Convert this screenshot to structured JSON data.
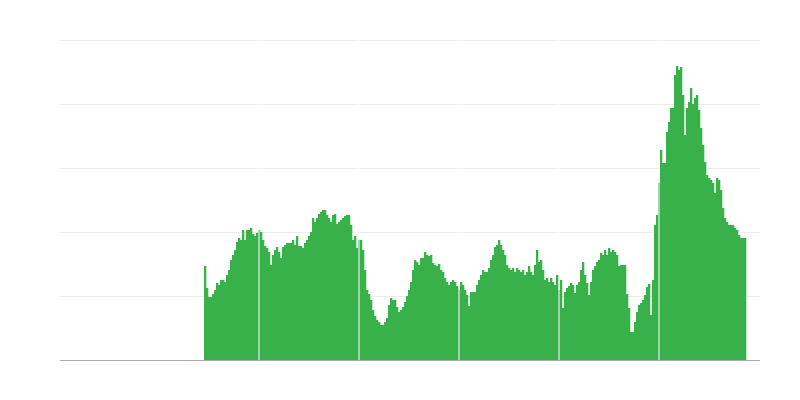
{
  "chart_data": {
    "type": "bar",
    "title": "",
    "xlabel": "",
    "ylabel": "",
    "ylim": [
      0,
      320
    ],
    "yticks": [
      0,
      64,
      128,
      192,
      256,
      320
    ],
    "grid": true,
    "legend": "none",
    "bar_color": "#38b14b",
    "grid_color": "#ebebeb",
    "axis_color": "#aaaaaa",
    "separator_color": "#ffffff",
    "x_start": 72,
    "x_end": 342,
    "x_range": [
      0,
      350
    ],
    "separators_at": [
      99.5,
      149.5,
      199.5,
      249.5,
      299.5
    ],
    "values": [
      94,
      72,
      63,
      63,
      66,
      70,
      77,
      75,
      80,
      80,
      78,
      85,
      90,
      100,
      105,
      110,
      118,
      122,
      120,
      130,
      120,
      130,
      130,
      132,
      126,
      124,
      127,
      130,
      128,
      120,
      114,
      112,
      108,
      95,
      105,
      110,
      113,
      108,
      102,
      113,
      115,
      117,
      117,
      117,
      120,
      115,
      124,
      114,
      114,
      112,
      117,
      120,
      124,
      128,
      142,
      138,
      142,
      146,
      148,
      150,
      150,
      145,
      142,
      138,
      145,
      146,
      136,
      138,
      140,
      142,
      144,
      145,
      145,
      135,
      120,
      124,
      112,
      120,
      120,
      110,
      90,
      70,
      66,
      60,
      50,
      44,
      40,
      38,
      35,
      35,
      38,
      42,
      55,
      62,
      60,
      60,
      53,
      48,
      50,
      53,
      58,
      64,
      70,
      78,
      90,
      100,
      98,
      95,
      102,
      102,
      108,
      105,
      104,
      105,
      97,
      95,
      94,
      96,
      90,
      88,
      82,
      78,
      75,
      78,
      80,
      78,
      74,
      70,
      78,
      75,
      70,
      65,
      54,
      68,
      68,
      68,
      75,
      80,
      85,
      90,
      88,
      88,
      92,
      100,
      105,
      113,
      115,
      120,
      115,
      110,
      105,
      95,
      92,
      90,
      92,
      88,
      92,
      90,
      88,
      90,
      85,
      88,
      94,
      88,
      85,
      95,
      110,
      98,
      100,
      90,
      80,
      82,
      78,
      82,
      78,
      75,
      85,
      70,
      80,
      52,
      68,
      72,
      74,
      77,
      75,
      67,
      75,
      78,
      90,
      98,
      85,
      77,
      65,
      78,
      90,
      94,
      98,
      100,
      107,
      105,
      110,
      105,
      112,
      108,
      110,
      108,
      105,
      94,
      95,
      95,
      95,
      66,
      52,
      28,
      28,
      38,
      48,
      55,
      57,
      60,
      65,
      73,
      76,
      45,
      80,
      135,
      145,
      177,
      210,
      197,
      197,
      228,
      238,
      252,
      252,
      285,
      294,
      290,
      293,
      265,
      225,
      252,
      258,
      272,
      256,
      262,
      265,
      250,
      232,
      215,
      198,
      185,
      182,
      180,
      177,
      167,
      182,
      180,
      170,
      152,
      142,
      138,
      135,
      135,
      135,
      132,
      130,
      125,
      122,
      122,
      122
    ]
  }
}
